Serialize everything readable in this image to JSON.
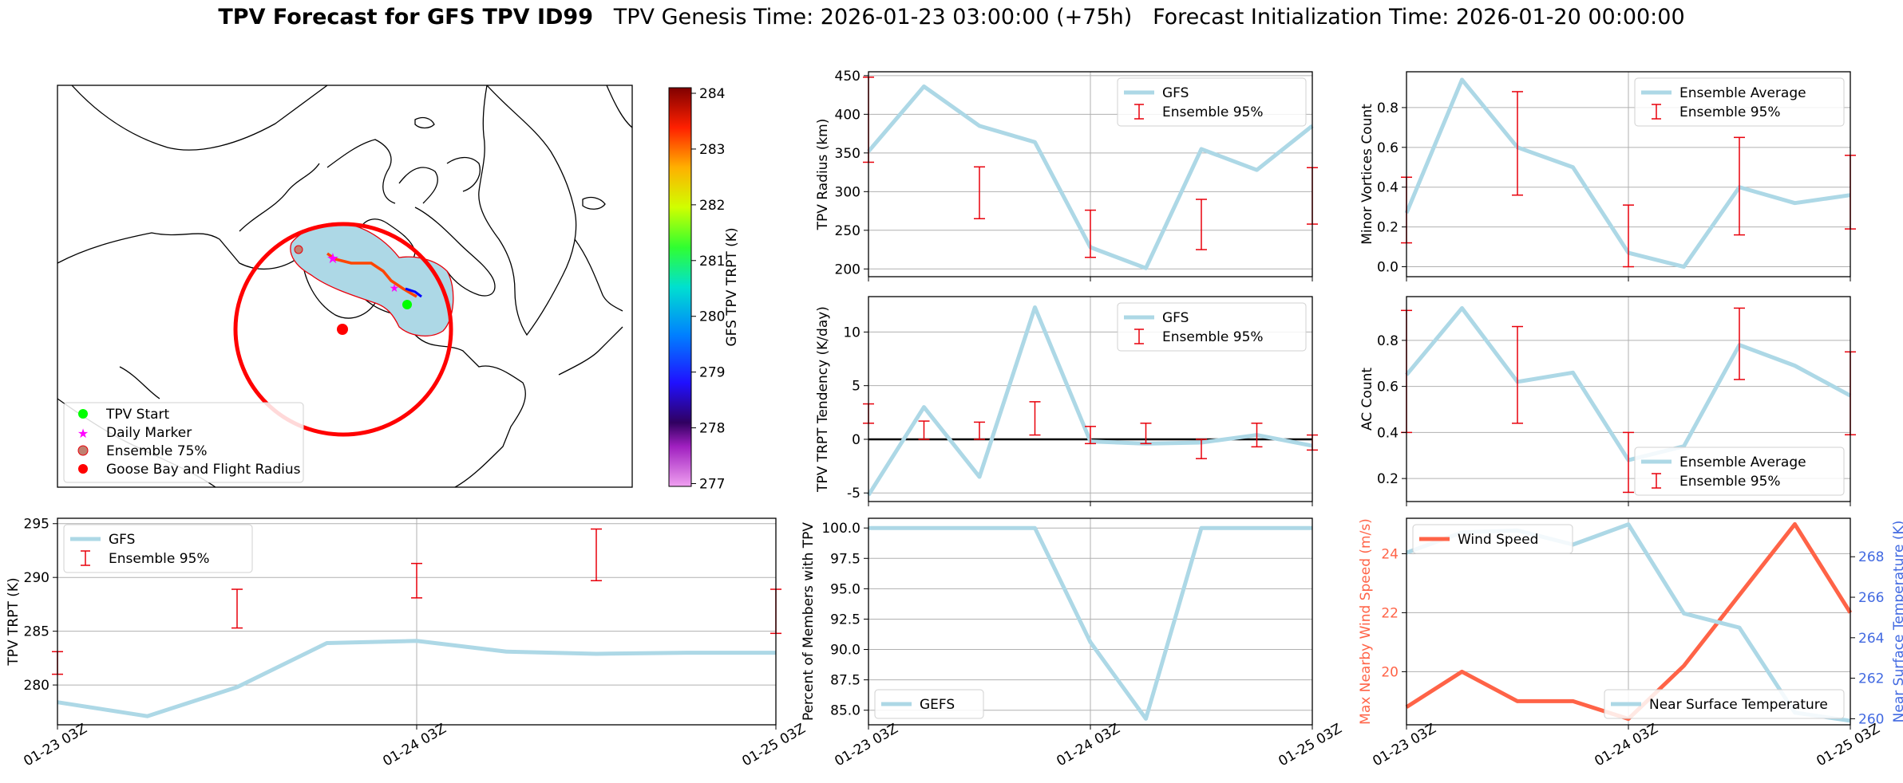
{
  "title": {
    "bold": "TPV Forecast for GFS TPV ID99",
    "genesis": "TPV Genesis Time: 2026-01-23 03:00:00 (+75h)",
    "init": "Forecast Initialization Time: 2026-01-20 00:00:00"
  },
  "colors": {
    "gfs": "#add8e6",
    "err": "#e8000b",
    "wind": "#ff6347",
    "temp_axis": "#4169e1",
    "track": "#ff4500",
    "daily": "#ff00ff",
    "start": "#00ff00",
    "flight": "#ff0000"
  },
  "time_ticks": [
    "01-23 03Z",
    "01-24 03Z",
    "01-25 03Z"
  ],
  "map": {
    "colorbar_label": "GFS TPV TRPT (K)",
    "colorbar_ticks": [
      284,
      283,
      282,
      281,
      280,
      279,
      278,
      277
    ],
    "colorbar_range": [
      276.95,
      284.1
    ],
    "legend": [
      "TPV Start",
      "Daily Marker",
      "Ensemble 75%",
      "Goose Bay and Flight Radius"
    ]
  },
  "chart_data": [
    {
      "id": "radius",
      "type": "line",
      "ylabel": "TPV Radius (km)",
      "ylim": [
        190,
        455
      ],
      "yticks": [
        200,
        250,
        300,
        350,
        400,
        450
      ],
      "legend": [
        "GFS",
        "Ensemble 95%"
      ],
      "legend_pos": "top-right",
      "x": [
        0,
        0.25,
        0.5,
        0.75,
        1.0,
        1.25,
        1.5,
        1.75,
        2.0
      ],
      "series": [
        {
          "name": "GFS",
          "values": [
            352,
            436,
            385,
            364,
            228,
            201,
            355,
            328,
            385
          ]
        }
      ],
      "errorbars": [
        [
          0,
          338,
          448
        ],
        [
          0.5,
          265,
          332
        ],
        [
          1.0,
          215,
          276
        ],
        [
          1.5,
          225,
          290
        ],
        [
          2.0,
          258,
          331
        ]
      ]
    },
    {
      "id": "minor",
      "type": "line",
      "ylabel": "Minor Vortices Count",
      "ylim": [
        -0.05,
        0.98
      ],
      "yticks": [
        0.0,
        0.2,
        0.4,
        0.6,
        0.8
      ],
      "legend": [
        "Ensemble Average",
        "Ensemble 95%"
      ],
      "legend_pos": "top-right",
      "x": [
        0,
        0.25,
        0.5,
        0.75,
        1.0,
        1.25,
        1.5,
        1.75,
        2.0
      ],
      "series": [
        {
          "name": "Ensemble Average",
          "values": [
            0.27,
            0.94,
            0.6,
            0.5,
            0.07,
            0.0,
            0.4,
            0.32,
            0.36
          ]
        }
      ],
      "errorbars": [
        [
          0,
          0.12,
          0.45
        ],
        [
          0.5,
          0.36,
          0.88
        ],
        [
          1.0,
          0.0,
          0.31
        ],
        [
          1.5,
          0.16,
          0.65
        ],
        [
          2.0,
          0.19,
          0.56
        ]
      ]
    },
    {
      "id": "tendency",
      "type": "line",
      "ylabel": "TPV TRPT Tendency (K/day)",
      "ylim": [
        -5.8,
        13.3
      ],
      "yticks": [
        -5,
        0,
        5,
        10
      ],
      "legend": [
        "GFS",
        "Ensemble 95%"
      ],
      "legend_pos": "top-right",
      "zero_line": true,
      "x": [
        0,
        0.25,
        0.5,
        0.75,
        1.0,
        1.25,
        1.5,
        1.75,
        2.0
      ],
      "series": [
        {
          "name": "GFS",
          "values": [
            -5.2,
            3.0,
            -3.5,
            12.3,
            -0.2,
            -0.4,
            -0.3,
            0.4,
            -0.6
          ]
        }
      ],
      "errorbars": [
        [
          0,
          1.5,
          3.3
        ],
        [
          0.25,
          0.0,
          1.7
        ],
        [
          0.5,
          0.0,
          1.6
        ],
        [
          0.75,
          0.4,
          3.5
        ],
        [
          1.0,
          -0.4,
          1.2
        ],
        [
          1.25,
          -0.4,
          1.5
        ],
        [
          1.5,
          -1.8,
          0.0
        ],
        [
          1.75,
          -0.7,
          1.5
        ],
        [
          2.0,
          -1.0,
          0.4
        ]
      ]
    },
    {
      "id": "ac",
      "type": "line",
      "ylabel": "AC Count",
      "ylim": [
        0.1,
        0.99
      ],
      "yticks": [
        0.2,
        0.4,
        0.6,
        0.8
      ],
      "legend": [
        "Ensemble Average",
        "Ensemble 95%"
      ],
      "legend_pos": "bottom-right",
      "x": [
        0,
        0.25,
        0.5,
        0.75,
        1.0,
        1.25,
        1.5,
        1.75,
        2.0
      ],
      "series": [
        {
          "name": "Ensemble Average",
          "values": [
            0.65,
            0.94,
            0.62,
            0.66,
            0.28,
            0.34,
            0.78,
            0.69,
            0.56
          ]
        }
      ],
      "errorbars": [
        [
          0,
          0.4,
          0.93
        ],
        [
          0.5,
          0.44,
          0.86
        ],
        [
          1.0,
          0.14,
          0.4
        ],
        [
          1.5,
          0.63,
          0.94
        ],
        [
          2.0,
          0.39,
          0.75
        ]
      ]
    },
    {
      "id": "trpt",
      "type": "line",
      "ylabel": "TPV TRPT (K)",
      "ylim": [
        276.3,
        295.5
      ],
      "yticks": [
        280,
        285,
        290,
        295
      ],
      "legend": [
        "GFS",
        "Ensemble 95%"
      ],
      "legend_pos": "top-left",
      "x": [
        0,
        0.25,
        0.5,
        0.75,
        1.0,
        1.25,
        1.5,
        1.75,
        2.0
      ],
      "series": [
        {
          "name": "GFS",
          "values": [
            278.4,
            277.1,
            279.8,
            283.9,
            284.1,
            283.1,
            282.9,
            283.0,
            283.0
          ]
        }
      ],
      "errorbars": [
        [
          0,
          281.0,
          283.1
        ],
        [
          0.5,
          285.3,
          288.9
        ],
        [
          1.0,
          288.1,
          291.3
        ],
        [
          1.5,
          289.7,
          294.5
        ],
        [
          2.0,
          284.8,
          288.9
        ]
      ]
    },
    {
      "id": "members",
      "type": "line",
      "ylabel": "Percent of Members with TPV",
      "ylim": [
        83.8,
        100.8
      ],
      "yticks": [
        85.0,
        87.5,
        90.0,
        92.5,
        95.0,
        97.5,
        100.0
      ],
      "legend": [
        "GEFS"
      ],
      "legend_pos": "bottom-left",
      "x": [
        0,
        0.25,
        0.5,
        0.75,
        1.0,
        1.25,
        1.5,
        1.75,
        2.0
      ],
      "series": [
        {
          "name": "GEFS",
          "values": [
            100,
            100,
            100,
            100,
            90.6,
            84.3,
            100,
            100,
            100
          ]
        }
      ]
    },
    {
      "id": "wind",
      "type": "line",
      "ylabel": "Max Nearby Wind Speed (m/s)",
      "ylim": [
        18.2,
        25.2
      ],
      "yticks": [
        20,
        22,
        24
      ],
      "legend": [
        "Wind Speed"
      ],
      "legend_pos": "top-left",
      "x": [
        0,
        0.25,
        0.5,
        0.75,
        1.0,
        1.25,
        1.5,
        1.75,
        2.0
      ],
      "series": [
        {
          "name": "Wind Speed",
          "values": [
            18.8,
            20.0,
            19.0,
            19.0,
            18.4,
            20.2,
            22.6,
            25.0,
            22.0
          ]
        }
      ],
      "y2label": "Near Surface Temperature (K)",
      "y2lim": [
        259.7,
        269.9
      ],
      "y2ticks": [
        260,
        262,
        264,
        266,
        268
      ],
      "legend2": [
        "Near Surface Temperature"
      ],
      "legend2_pos": "bottom-right",
      "series2": [
        {
          "name": "Near Surface Temperature",
          "values": [
            268.2,
            269.2,
            269.3,
            268.6,
            269.6,
            265.2,
            264.5,
            260.3,
            259.9
          ]
        }
      ]
    }
  ]
}
